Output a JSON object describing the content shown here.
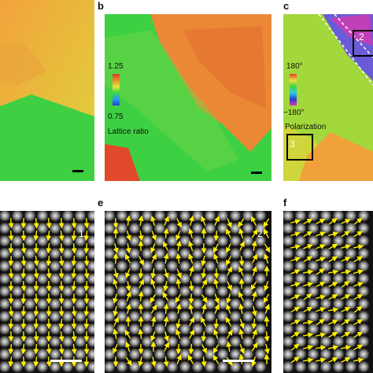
{
  "panel_labels": {
    "b": "b",
    "c": "c",
    "e": "e",
    "f": "f"
  },
  "colorbar_b": {
    "max": "1.25",
    "min": "0.75",
    "title": "Lattice ratio"
  },
  "colorbar_c": {
    "max": "180°",
    "min": "−180°",
    "title": "Polarization"
  },
  "region_labels": {
    "one": "1",
    "two": "2",
    "three": "3"
  },
  "colors": {
    "green": "#2fcf3a",
    "yellow": "#d6d83a",
    "orange": "#ea8a32",
    "red": "#e03a2a",
    "arrow": "#ffee00",
    "scalebar_white": "#ffffff"
  }
}
